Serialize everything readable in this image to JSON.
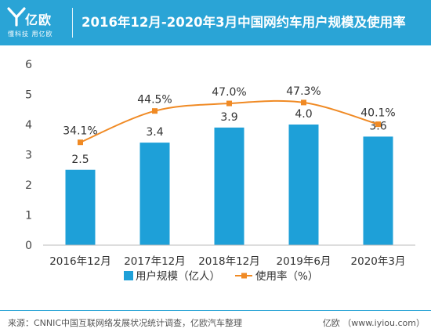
{
  "brand": {
    "name": "亿欧",
    "tagline": "懂科技 用亿欧",
    "primary_color": "#2aa4d6",
    "logo_icon": "yiou-logo-icon"
  },
  "title": "2016年12月-2020年3月中国网约车用户规模及使用率",
  "chart_data": {
    "type": "bar",
    "categories": [
      "2016年12月",
      "2017年12月",
      "2018年12月",
      "2019年6月",
      "2020年3月"
    ],
    "series": [
      {
        "name": "用户规模（亿人）",
        "type": "bar",
        "axis": "left",
        "color": "#1ea0d8",
        "values": [
          2.5,
          3.4,
          3.9,
          4.0,
          3.6
        ],
        "labels": [
          "2.5",
          "3.4",
          "3.9",
          "4.0",
          "3.6"
        ]
      },
      {
        "name": "使用率（%）",
        "type": "line",
        "axis": "secondary",
        "color": "#f08a24",
        "values": [
          34.1,
          44.5,
          47.0,
          47.3,
          40.1
        ],
        "labels": [
          "34.1%",
          "44.5%",
          "47.0%",
          "47.3%",
          "40.1%"
        ]
      }
    ],
    "ylim": [
      0,
      6
    ],
    "yticks": [
      "0",
      "1",
      "2",
      "3",
      "4",
      "5",
      "6"
    ],
    "y2lim": [
      0,
      60
    ],
    "grid": false,
    "legend": "bottom"
  },
  "footer": {
    "source": "来源：CNNIC中国互联网络发展状况统计调查，亿欧汽车整理",
    "site": "亿欧 （www.iyiou.com）"
  }
}
